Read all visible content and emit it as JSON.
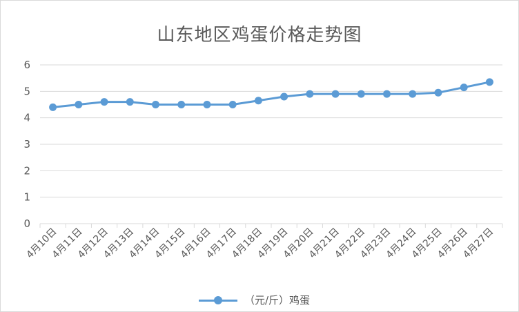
{
  "chart_data": {
    "type": "line",
    "title": "山东地区鸡蛋价格走势图",
    "categories": [
      "4月10日",
      "4月11日",
      "4月12日",
      "4月13日",
      "4月14日",
      "4月15日",
      "4月16日",
      "4月17日",
      "4月18日",
      "4月19日",
      "4月20日",
      "4月21日",
      "4月22日",
      "4月23日",
      "4月24日",
      "4月25日",
      "4月26日",
      "4月27日"
    ],
    "series": [
      {
        "name": "（元/斤）鸡蛋",
        "values": [
          4.4,
          4.5,
          4.6,
          4.6,
          4.5,
          4.5,
          4.5,
          4.5,
          4.65,
          4.8,
          4.9,
          4.9,
          4.9,
          4.9,
          4.9,
          4.95,
          5.15,
          5.35
        ]
      }
    ],
    "ylim": [
      0,
      6
    ],
    "yticks": [
      "0",
      "1",
      "2",
      "3",
      "4",
      "5",
      "6"
    ],
    "grid": true,
    "legend_position": "bottom",
    "series_color": "#5b9bd5"
  }
}
